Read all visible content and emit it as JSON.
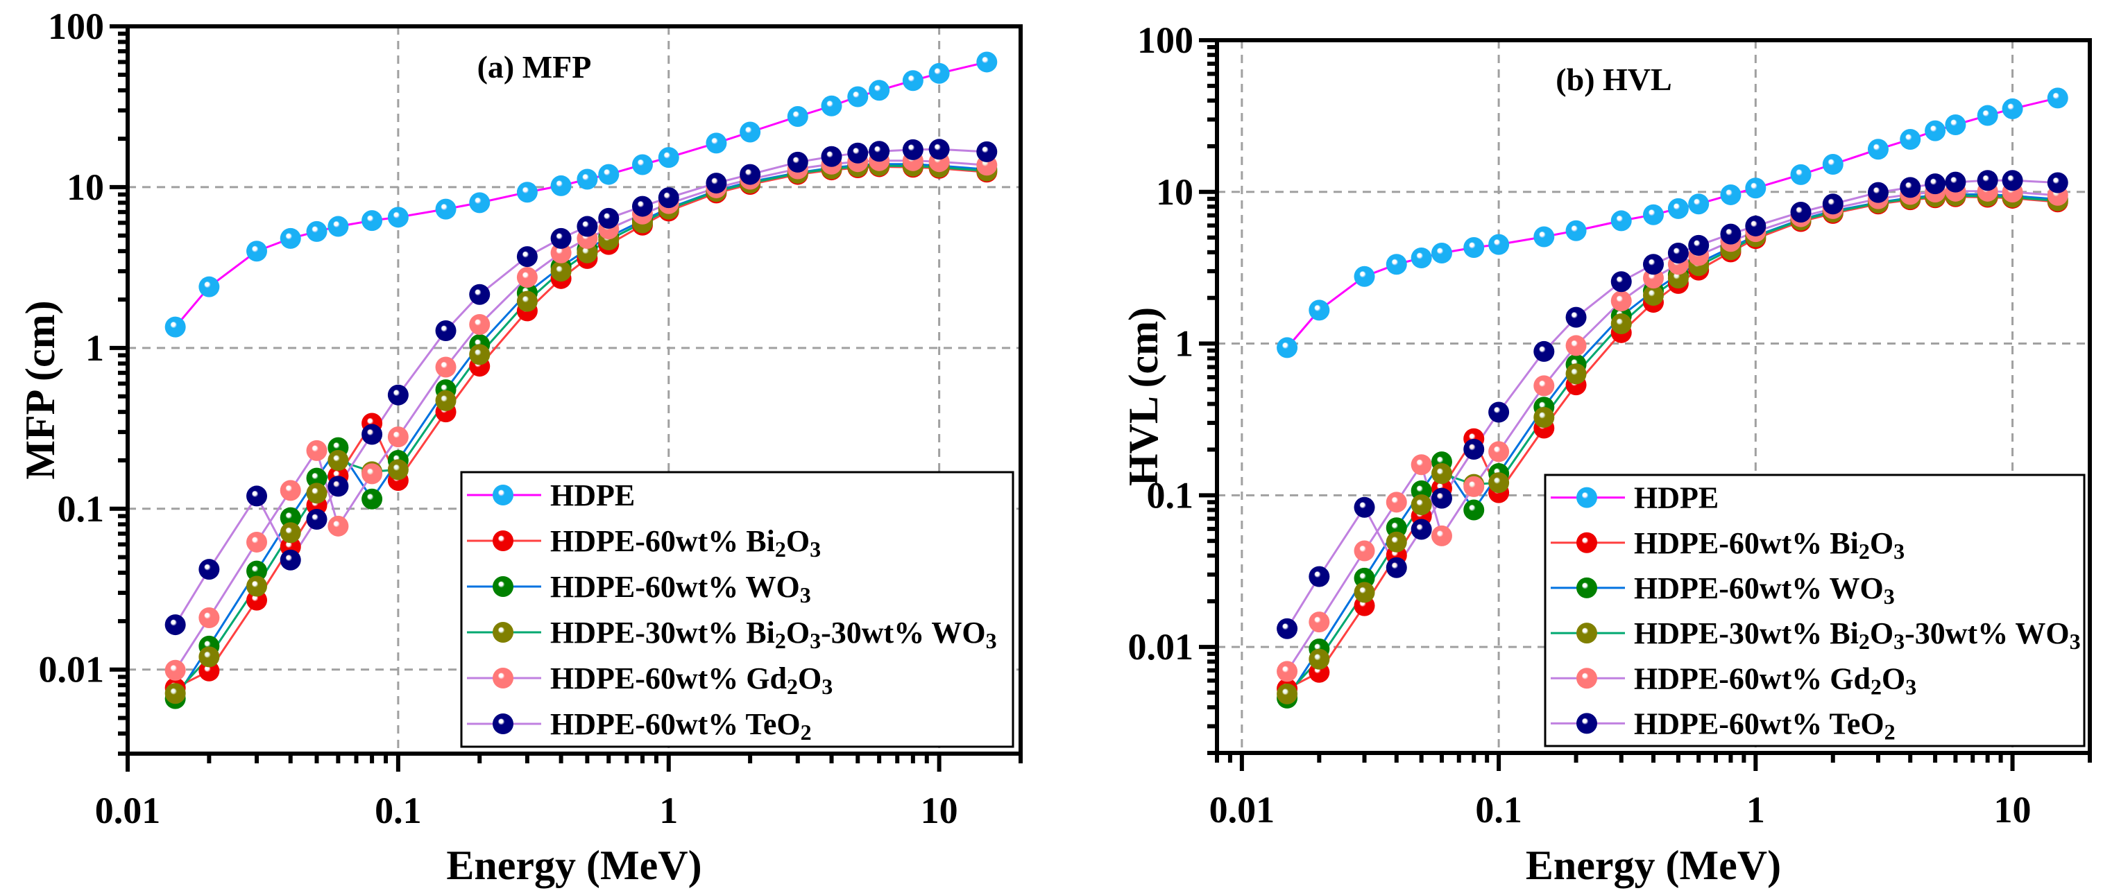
{
  "chart_data": [
    {
      "type": "line",
      "title": "(a) MFP",
      "xlabel": "Energy (MeV)",
      "ylabel": "MFP (cm)",
      "xscale": "log",
      "yscale": "log",
      "xlim": [
        0.01,
        20
      ],
      "ylim": [
        0.003,
        100
      ],
      "xticks": [
        "0.01",
        "0.1",
        "1",
        "10"
      ],
      "yticks": [
        "0.01",
        "0.1",
        "1",
        "10",
        "100"
      ],
      "grid": true,
      "legend_position": "bottom-right",
      "x": [
        0.015,
        0.02,
        0.03,
        0.04,
        0.05,
        0.06,
        0.08,
        0.1,
        0.15,
        0.2,
        0.3,
        0.4,
        0.5,
        0.6,
        0.8,
        1,
        1.5,
        2,
        3,
        4,
        5,
        6,
        8,
        10,
        15
      ],
      "series": [
        {
          "name": "HDPE",
          "values": [
            1.35,
            2.4,
            4.0,
            4.8,
            5.3,
            5.7,
            6.2,
            6.5,
            7.3,
            8.0,
            9.3,
            10.2,
            11.2,
            12.0,
            13.8,
            15.3,
            18.8,
            22,
            27.5,
            32,
            36.5,
            40,
            46,
            51,
            60
          ]
        },
        {
          "name": "HDPE-60wt% Bi2O3",
          "values": [
            0.0077,
            0.0098,
            0.027,
            0.058,
            0.105,
            0.16,
            0.34,
            0.15,
            0.4,
            0.77,
            1.7,
            2.7,
            3.6,
            4.4,
            5.8,
            7.1,
            9.2,
            10.4,
            12.0,
            12.8,
            13.2,
            13.4,
            13.3,
            13.1,
            12.4
          ]
        },
        {
          "name": "HDPE-60wt% WO3",
          "values": [
            0.0066,
            0.014,
            0.041,
            0.088,
            0.155,
            0.24,
            0.115,
            0.2,
            0.55,
            1.05,
            2.2,
            3.2,
            4.1,
            4.9,
            6.2,
            7.4,
            9.5,
            10.8,
            12.3,
            13.2,
            13.7,
            13.9,
            13.9,
            13.6,
            12.9
          ]
        },
        {
          "name": "HDPE-30wt% Bi2O3-30wt% WO3",
          "values": [
            0.0071,
            0.012,
            0.033,
            0.071,
            0.125,
            0.2,
            0.17,
            0.175,
            0.47,
            0.91,
            1.95,
            3.0,
            3.9,
            4.7,
            6.0,
            7.3,
            9.4,
            10.6,
            12.2,
            13.0,
            13.4,
            13.6,
            13.5,
            13.3,
            12.6
          ]
        },
        {
          "name": "HDPE-60wt% Gd2O3",
          "values": [
            0.0099,
            0.021,
            0.062,
            0.13,
            0.23,
            0.078,
            0.165,
            0.28,
            0.76,
            1.4,
            2.75,
            3.9,
            4.8,
            5.5,
            6.8,
            7.9,
            9.9,
            11.2,
            13.0,
            13.9,
            14.4,
            14.6,
            14.6,
            14.4,
            13.7
          ]
        },
        {
          "name": "HDPE-60wt% TeO2",
          "values": [
            0.019,
            0.042,
            0.12,
            0.048,
            0.086,
            0.138,
            0.29,
            0.51,
            1.28,
            2.15,
            3.7,
            4.8,
            5.7,
            6.4,
            7.6,
            8.6,
            10.6,
            12.0,
            14.3,
            15.5,
            16.3,
            16.7,
            17.1,
            17.2,
            16.6
          ]
        }
      ]
    },
    {
      "type": "line",
      "title": "(b) HVL",
      "xlabel": "Energy (MeV)",
      "ylabel": "HVL (cm)",
      "xscale": "log",
      "yscale": "log",
      "xlim": [
        0.008,
        20
      ],
      "ylim": [
        0.002,
        100
      ],
      "xticks": [
        "0.01",
        "0.1",
        "1",
        "10"
      ],
      "yticks": [
        "0.01",
        "0.1",
        "1",
        "10",
        "100"
      ],
      "grid": true,
      "legend_position": "bottom-right",
      "x": [
        0.015,
        0.02,
        0.03,
        0.04,
        0.05,
        0.06,
        0.08,
        0.1,
        0.15,
        0.2,
        0.3,
        0.4,
        0.5,
        0.6,
        0.8,
        1,
        1.5,
        2,
        3,
        4,
        5,
        6,
        8,
        10,
        15
      ],
      "series": [
        {
          "name": "HDPE",
          "values": [
            0.94,
            1.66,
            2.77,
            3.33,
            3.67,
            3.95,
            4.3,
            4.5,
            5.06,
            5.55,
            6.45,
            7.07,
            7.76,
            8.32,
            9.57,
            10.6,
            13.0,
            15.2,
            19.1,
            22.2,
            25.3,
            27.7,
            31.9,
            35.3,
            41.6
          ]
        },
        {
          "name": "HDPE-60wt% Bi2O3",
          "values": [
            0.0053,
            0.0068,
            0.0187,
            0.0402,
            0.0728,
            0.111,
            0.236,
            0.104,
            0.277,
            0.534,
            1.18,
            1.87,
            2.49,
            3.05,
            4.02,
            4.92,
            6.38,
            7.21,
            8.32,
            8.87,
            9.15,
            9.29,
            9.22,
            9.08,
            8.59
          ]
        },
        {
          "name": "HDPE-60wt% WO3",
          "values": [
            0.0046,
            0.0097,
            0.0284,
            0.061,
            0.107,
            0.166,
            0.08,
            0.139,
            0.381,
            0.728,
            1.52,
            2.22,
            2.84,
            3.4,
            4.3,
            5.13,
            6.58,
            7.48,
            8.52,
            9.15,
            9.49,
            9.63,
            9.63,
            9.42,
            8.94
          ]
        },
        {
          "name": "HDPE-30wt% Bi2O3-30wt% WO3",
          "values": [
            0.0049,
            0.0083,
            0.0229,
            0.0492,
            0.0866,
            0.139,
            0.118,
            0.121,
            0.326,
            0.631,
            1.35,
            2.08,
            2.7,
            3.26,
            4.16,
            5.06,
            6.51,
            7.35,
            8.45,
            9.01,
            9.29,
            9.42,
            9.36,
            9.22,
            8.73
          ]
        },
        {
          "name": "HDPE-60wt% Gd2O3",
          "values": [
            0.0069,
            0.0146,
            0.043,
            0.09,
            0.159,
            0.054,
            0.114,
            0.194,
            0.527,
            0.97,
            1.91,
            2.7,
            3.33,
            3.81,
            4.71,
            5.47,
            6.86,
            7.76,
            9.01,
            9.63,
            9.98,
            10.1,
            10.1,
            9.98,
            9.49
          ]
        },
        {
          "name": "HDPE-60wt% TeO2",
          "values": [
            0.0132,
            0.0291,
            0.0832,
            0.0333,
            0.0596,
            0.0956,
            0.201,
            0.353,
            0.887,
            1.49,
            2.56,
            3.33,
            3.95,
            4.44,
            5.27,
            5.96,
            7.35,
            8.32,
            9.91,
            10.7,
            11.3,
            11.6,
            11.9,
            11.9,
            11.5
          ]
        }
      ]
    }
  ],
  "styles": {
    "series": [
      {
        "marker": "#1ab0f5",
        "line": "#ff00ff"
      },
      {
        "marker": "#ee0000",
        "line": "#ff4040"
      },
      {
        "marker": "#008000",
        "line": "#0072e0"
      },
      {
        "marker": "#808000",
        "line": "#00a870"
      },
      {
        "marker": "#ff7878",
        "line": "#c080e0"
      },
      {
        "marker": "#000080",
        "line": "#c080e0"
      }
    ],
    "grid": "#a0a0a0"
  }
}
